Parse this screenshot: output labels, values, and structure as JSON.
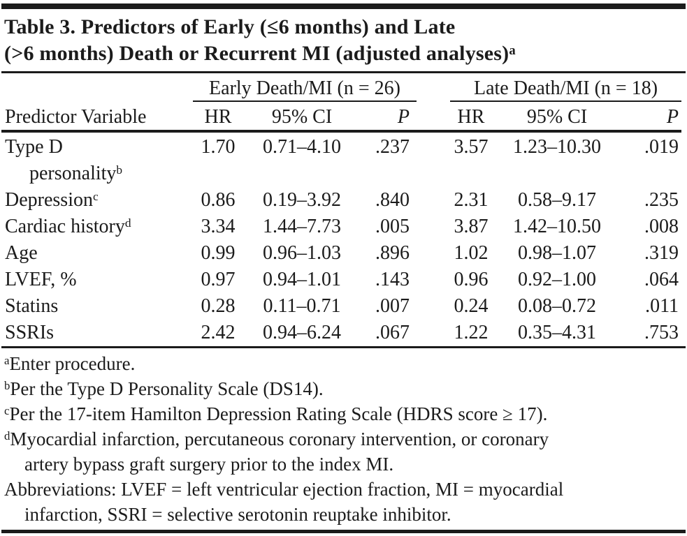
{
  "title": {
    "line1": "Table 3. Predictors of Early (≤6 months) and Late",
    "line2": "(>6 months) Death or Recurrent MI (adjusted analyses)",
    "sup": "a"
  },
  "table": {
    "predictor_header": "Predictor Variable",
    "groups": [
      {
        "label": "Early Death/MI (n = 26)",
        "cols": [
          "HR",
          "95% CI",
          "P"
        ]
      },
      {
        "label": "Late Death/MI (n = 18)",
        "cols": [
          "HR",
          "95% CI",
          "P"
        ]
      }
    ],
    "rows": [
      {
        "label": "Type D",
        "label2": "personality",
        "sup": "b",
        "early_hr": "1.70",
        "early_ci": "0.71–4.10",
        "early_p": ".237",
        "late_hr": "3.57",
        "late_ci": "1.23–10.30",
        "late_p": ".019"
      },
      {
        "label": "Depression",
        "sup": "c",
        "early_hr": "0.86",
        "early_ci": "0.19–3.92",
        "early_p": ".840",
        "late_hr": "2.31",
        "late_ci": "0.58–9.17",
        "late_p": ".235"
      },
      {
        "label": "Cardiac history",
        "sup": "d",
        "early_hr": "3.34",
        "early_ci": "1.44–7.73",
        "early_p": ".005",
        "late_hr": "3.87",
        "late_ci": "1.42–10.50",
        "late_p": ".008"
      },
      {
        "label": "Age",
        "sup": "",
        "early_hr": "0.99",
        "early_ci": "0.96–1.03",
        "early_p": ".896",
        "late_hr": "1.02",
        "late_ci": "0.98–1.07",
        "late_p": ".319"
      },
      {
        "label": "LVEF, %",
        "sup": "",
        "early_hr": "0.97",
        "early_ci": "0.94–1.01",
        "early_p": ".143",
        "late_hr": "0.96",
        "late_ci": "0.92–1.00",
        "late_p": ".064"
      },
      {
        "label": "Statins",
        "sup": "",
        "early_hr": "0.28",
        "early_ci": "0.11–0.71",
        "early_p": ".007",
        "late_hr": "0.24",
        "late_ci": "0.08–0.72",
        "late_p": ".011"
      },
      {
        "label": "SSRIs",
        "sup": "",
        "early_hr": "2.42",
        "early_ci": "0.94–6.24",
        "early_p": ".067",
        "late_hr": "1.22",
        "late_ci": "0.35–4.31",
        "late_p": ".753"
      }
    ]
  },
  "footnotes": [
    {
      "marker": "a",
      "line1": "Enter procedure."
    },
    {
      "marker": "b",
      "line1": "Per the Type D Personality Scale (DS14)."
    },
    {
      "marker": "c",
      "line1": "Per the 17-item Hamilton Depression Rating Scale (HDRS score ≥ 17)."
    },
    {
      "marker": "d",
      "line1": "Myocardial infarction, percutaneous coronary intervention, or coronary",
      "line2": "artery bypass graft surgery prior to the index MI."
    },
    {
      "marker": "",
      "line1": "Abbreviations: LVEF = left ventricular ejection fraction, MI = myocardial",
      "line2": "infarction, SSRI = selective serotonin reuptake inhibitor."
    }
  ],
  "colors": {
    "text": "#1b1b1b",
    "rule": "#1b1b1b",
    "background": "#ffffff"
  }
}
